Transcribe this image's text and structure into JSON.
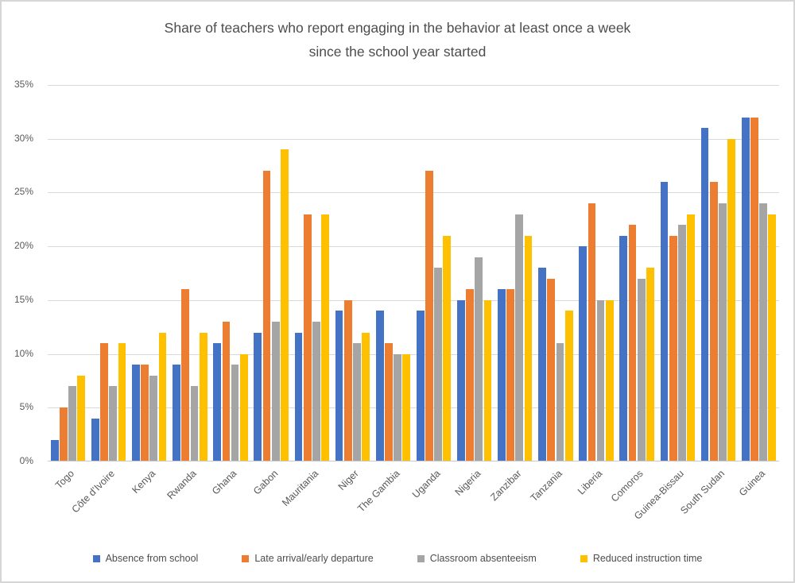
{
  "chart_data": {
    "type": "bar",
    "title": "Share of teachers who report engaging in the behavior at least once a week since the school year started",
    "title_lines": [
      "Share of teachers who report engaging in the behavior at least once a week",
      "since the school year started"
    ],
    "categories": [
      "Togo",
      "Côte d’Ivoire",
      "Kenya",
      "Rwanda",
      "Ghana",
      "Gabon",
      "Mauritania",
      "Niger",
      "The Gambia",
      "Uganda",
      "Nigeria",
      "Zanzibar",
      "Tanzania",
      "Liberia",
      "Comoros",
      "Guinea-Bissau",
      "South Sudan",
      "Guinea"
    ],
    "series": [
      {
        "name": "Absence from school",
        "color": "#4472C4",
        "values": [
          2,
          4,
          9,
          9,
          11,
          12,
          12,
          14,
          14,
          14,
          15,
          16,
          18,
          20,
          21,
          26,
          31,
          32
        ]
      },
      {
        "name": "Late arrival/early departure",
        "color": "#ED7D31",
        "values": [
          5,
          11,
          9,
          16,
          13,
          27,
          23,
          15,
          11,
          27,
          16,
          16,
          17,
          24,
          22,
          21,
          26,
          32
        ]
      },
      {
        "name": "Classroom absenteeism",
        "color": "#A5A5A5",
        "values": [
          7,
          7,
          8,
          7,
          9,
          13,
          13,
          11,
          10,
          18,
          19,
          23,
          11,
          15,
          17,
          22,
          24,
          24
        ]
      },
      {
        "name": "Reduced instruction time",
        "color": "#FFC000",
        "values": [
          8,
          11,
          12,
          12,
          10,
          29,
          23,
          12,
          10,
          21,
          15,
          21,
          14,
          15,
          18,
          23,
          30,
          23
        ]
      }
    ],
    "y_axis": {
      "unit": "%",
      "min": 0,
      "max": 35,
      "step": 5,
      "ticks": [
        "0%",
        "5%",
        "10%",
        "15%",
        "20%",
        "25%",
        "30%",
        "35%"
      ]
    },
    "x_axis": {
      "label_rotation_deg": -45
    },
    "grid": true,
    "legend_position": "bottom"
  }
}
